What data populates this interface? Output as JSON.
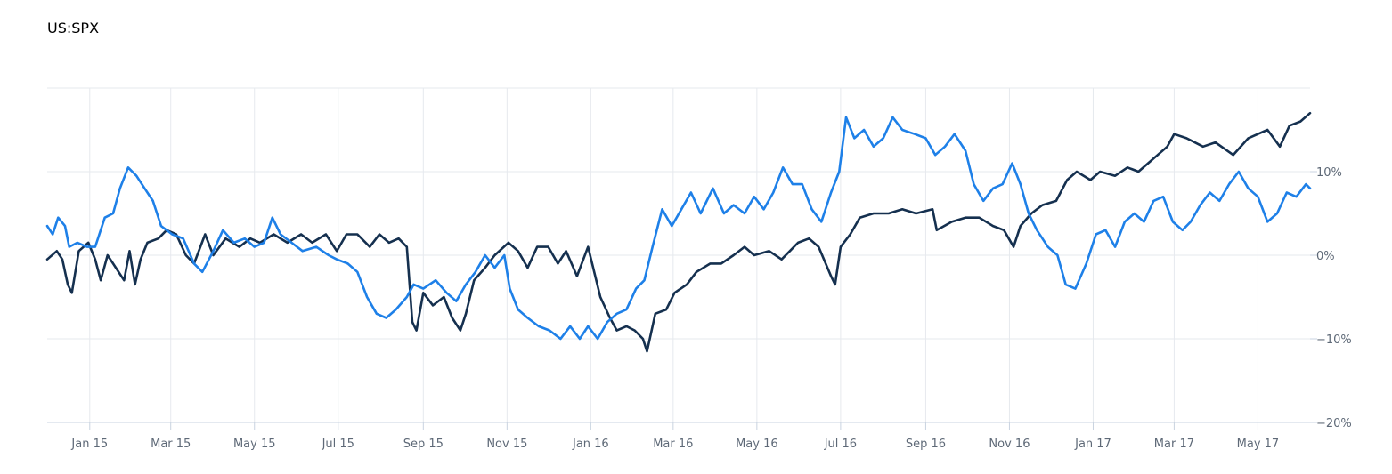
{
  "chart_data": {
    "type": "line",
    "title": "US:SPX",
    "xlabel": "",
    "ylabel": "",
    "x_range": [
      "2014-12-01",
      "2017-06-08"
    ],
    "ylim": [
      -20,
      20
    ],
    "y_ticks": [
      10,
      0,
      -10,
      -20
    ],
    "y_tick_labels": [
      "10%",
      "0%",
      "−10%",
      "−20%"
    ],
    "x_ticks": [
      {
        "date": "2015-01-01",
        "label": "Jan 15"
      },
      {
        "date": "2015-03-01",
        "label": "Mar 15"
      },
      {
        "date": "2015-05-01",
        "label": "May 15"
      },
      {
        "date": "2015-07-01",
        "label": "Jul 15"
      },
      {
        "date": "2015-09-01",
        "label": "Sep 15"
      },
      {
        "date": "2015-11-01",
        "label": "Nov 15"
      },
      {
        "date": "2016-01-01",
        "label": "Jan 16"
      },
      {
        "date": "2016-03-01",
        "label": "Mar 16"
      },
      {
        "date": "2016-05-01",
        "label": "May 16"
      },
      {
        "date": "2016-07-01",
        "label": "Jul 16"
      },
      {
        "date": "2016-09-01",
        "label": "Sep 16"
      },
      {
        "date": "2016-11-01",
        "label": "Nov 16"
      },
      {
        "date": "2017-01-01",
        "label": "Jan 17"
      },
      {
        "date": "2017-03-01",
        "label": "Mar 17"
      },
      {
        "date": "2017-05-01",
        "label": "May 17"
      }
    ],
    "grid": true,
    "y_axis_side": "right",
    "series": [
      {
        "color": "#15304f",
        "points": [
          [
            "2014-12-01",
            -0.5
          ],
          [
            "2014-12-08",
            0.5
          ],
          [
            "2014-12-12",
            -0.5
          ],
          [
            "2014-12-16",
            -3.5
          ],
          [
            "2014-12-19",
            -4.5
          ],
          [
            "2014-12-24",
            0.5
          ],
          [
            "2014-12-31",
            1.5
          ],
          [
            "2015-01-05",
            -0.5
          ],
          [
            "2015-01-09",
            -3
          ],
          [
            "2015-01-14",
            0
          ],
          [
            "2015-01-20",
            -1.5
          ],
          [
            "2015-01-26",
            -3
          ],
          [
            "2015-01-30",
            0.5
          ],
          [
            "2015-02-03",
            -3.5
          ],
          [
            "2015-02-07",
            -0.5
          ],
          [
            "2015-02-12",
            1.5
          ],
          [
            "2015-02-20",
            2
          ],
          [
            "2015-02-26",
            3
          ],
          [
            "2015-03-05",
            2.5
          ],
          [
            "2015-03-12",
            0
          ],
          [
            "2015-03-18",
            -1
          ],
          [
            "2015-03-26",
            2.5
          ],
          [
            "2015-04-01",
            0
          ],
          [
            "2015-04-10",
            2
          ],
          [
            "2015-04-20",
            1
          ],
          [
            "2015-04-28",
            2
          ],
          [
            "2015-05-05",
            1.5
          ],
          [
            "2015-05-15",
            2.5
          ],
          [
            "2015-05-25",
            1.5
          ],
          [
            "2015-06-04",
            2.5
          ],
          [
            "2015-06-12",
            1.5
          ],
          [
            "2015-06-22",
            2.5
          ],
          [
            "2015-06-30",
            0.5
          ],
          [
            "2015-07-07",
            2.5
          ],
          [
            "2015-07-15",
            2.5
          ],
          [
            "2015-07-24",
            1
          ],
          [
            "2015-07-31",
            2.5
          ],
          [
            "2015-08-07",
            1.5
          ],
          [
            "2015-08-14",
            2
          ],
          [
            "2015-08-20",
            1
          ],
          [
            "2015-08-24",
            -8
          ],
          [
            "2015-08-27",
            -9
          ],
          [
            "2015-09-01",
            -4.5
          ],
          [
            "2015-09-08",
            -6
          ],
          [
            "2015-09-16",
            -5
          ],
          [
            "2015-09-22",
            -7.5
          ],
          [
            "2015-09-28",
            -9
          ],
          [
            "2015-10-02",
            -7
          ],
          [
            "2015-10-08",
            -3
          ],
          [
            "2015-10-16",
            -1.5
          ],
          [
            "2015-10-23",
            0
          ],
          [
            "2015-11-02",
            1.5
          ],
          [
            "2015-11-09",
            0.5
          ],
          [
            "2015-11-16",
            -1.5
          ],
          [
            "2015-11-23",
            1
          ],
          [
            "2015-12-01",
            1
          ],
          [
            "2015-12-08",
            -1
          ],
          [
            "2015-12-14",
            0.5
          ],
          [
            "2015-12-22",
            -2.5
          ],
          [
            "2015-12-30",
            1
          ],
          [
            "2016-01-05",
            -3
          ],
          [
            "2016-01-08",
            -5
          ],
          [
            "2016-01-15",
            -7.5
          ],
          [
            "2016-01-20",
            -9
          ],
          [
            "2016-01-27",
            -8.5
          ],
          [
            "2016-02-02",
            -9
          ],
          [
            "2016-02-08",
            -10
          ],
          [
            "2016-02-11",
            -11.5
          ],
          [
            "2016-02-17",
            -7
          ],
          [
            "2016-02-25",
            -6.5
          ],
          [
            "2016-03-02",
            -4.5
          ],
          [
            "2016-03-11",
            -3.5
          ],
          [
            "2016-03-18",
            -2
          ],
          [
            "2016-03-28",
            -1
          ],
          [
            "2016-04-05",
            -1
          ],
          [
            "2016-04-14",
            0
          ],
          [
            "2016-04-22",
            1
          ],
          [
            "2016-04-29",
            0
          ],
          [
            "2016-05-10",
            0.5
          ],
          [
            "2016-05-19",
            -0.5
          ],
          [
            "2016-05-31",
            1.5
          ],
          [
            "2016-06-08",
            2
          ],
          [
            "2016-06-15",
            1
          ],
          [
            "2016-06-24",
            -2.5
          ],
          [
            "2016-06-27",
            -3.5
          ],
          [
            "2016-07-01",
            1
          ],
          [
            "2016-07-08",
            2.5
          ],
          [
            "2016-07-15",
            4.5
          ],
          [
            "2016-07-25",
            5
          ],
          [
            "2016-08-05",
            5
          ],
          [
            "2016-08-15",
            5.5
          ],
          [
            "2016-08-25",
            5
          ],
          [
            "2016-09-06",
            5.5
          ],
          [
            "2016-09-09",
            3
          ],
          [
            "2016-09-20",
            4
          ],
          [
            "2016-09-30",
            4.5
          ],
          [
            "2016-10-10",
            4.5
          ],
          [
            "2016-10-20",
            3.5
          ],
          [
            "2016-10-28",
            3
          ],
          [
            "2016-11-04",
            1
          ],
          [
            "2016-11-09",
            3.5
          ],
          [
            "2016-11-17",
            5
          ],
          [
            "2016-11-25",
            6
          ],
          [
            "2016-12-05",
            6.5
          ],
          [
            "2016-12-13",
            9
          ],
          [
            "2016-12-20",
            10
          ],
          [
            "2016-12-30",
            9
          ],
          [
            "2017-01-06",
            10
          ],
          [
            "2017-01-17",
            9.5
          ],
          [
            "2017-01-26",
            10.5
          ],
          [
            "2017-02-03",
            10
          ],
          [
            "2017-02-10",
            11
          ],
          [
            "2017-02-17",
            12
          ],
          [
            "2017-02-24",
            13
          ],
          [
            "2017-03-01",
            14.5
          ],
          [
            "2017-03-10",
            14
          ],
          [
            "2017-03-22",
            13
          ],
          [
            "2017-03-31",
            13.5
          ],
          [
            "2017-04-13",
            12
          ],
          [
            "2017-04-24",
            14
          ],
          [
            "2017-05-01",
            14.5
          ],
          [
            "2017-05-08",
            15
          ],
          [
            "2017-05-17",
            13
          ],
          [
            "2017-05-24",
            15.5
          ],
          [
            "2017-06-01",
            16
          ],
          [
            "2017-06-08",
            17
          ]
        ]
      },
      {
        "color": "#1e80e8",
        "points": [
          [
            "2014-12-01",
            3.5
          ],
          [
            "2014-12-05",
            2.5
          ],
          [
            "2014-12-09",
            4.5
          ],
          [
            "2014-12-14",
            3.5
          ],
          [
            "2014-12-17",
            1
          ],
          [
            "2014-12-23",
            1.5
          ],
          [
            "2014-12-30",
            1
          ],
          [
            "2015-01-05",
            1
          ],
          [
            "2015-01-12",
            4.5
          ],
          [
            "2015-01-18",
            5
          ],
          [
            "2015-01-23",
            8
          ],
          [
            "2015-01-29",
            10.5
          ],
          [
            "2015-02-04",
            9.5
          ],
          [
            "2015-02-10",
            8
          ],
          [
            "2015-02-16",
            6.5
          ],
          [
            "2015-02-22",
            3.5
          ],
          [
            "2015-03-02",
            2.5
          ],
          [
            "2015-03-10",
            2
          ],
          [
            "2015-03-18",
            -1
          ],
          [
            "2015-03-24",
            -2
          ],
          [
            "2015-04-01",
            0.5
          ],
          [
            "2015-04-08",
            3
          ],
          [
            "2015-04-16",
            1.5
          ],
          [
            "2015-04-24",
            2
          ],
          [
            "2015-05-01",
            1
          ],
          [
            "2015-05-08",
            1.5
          ],
          [
            "2015-05-14",
            4.5
          ],
          [
            "2015-05-20",
            2.5
          ],
          [
            "2015-05-28",
            1.5
          ],
          [
            "2015-06-05",
            0.5
          ],
          [
            "2015-06-15",
            1
          ],
          [
            "2015-06-24",
            0
          ],
          [
            "2015-06-30",
            -0.5
          ],
          [
            "2015-07-08",
            -1
          ],
          [
            "2015-07-15",
            -2
          ],
          [
            "2015-07-22",
            -5
          ],
          [
            "2015-07-29",
            -7
          ],
          [
            "2015-08-05",
            -7.5
          ],
          [
            "2015-08-12",
            -6.5
          ],
          [
            "2015-08-20",
            -5
          ],
          [
            "2015-08-25",
            -3.5
          ],
          [
            "2015-09-01",
            -4
          ],
          [
            "2015-09-10",
            -3
          ],
          [
            "2015-09-18",
            -4.5
          ],
          [
            "2015-09-25",
            -5.5
          ],
          [
            "2015-10-02",
            -3.5
          ],
          [
            "2015-10-09",
            -2
          ],
          [
            "2015-10-16",
            0
          ],
          [
            "2015-10-23",
            -1.5
          ],
          [
            "2015-10-30",
            0
          ],
          [
            "2015-11-03",
            -4
          ],
          [
            "2015-11-09",
            -6.5
          ],
          [
            "2015-11-16",
            -7.5
          ],
          [
            "2015-11-24",
            -8.5
          ],
          [
            "2015-12-02",
            -9
          ],
          [
            "2015-12-10",
            -10
          ],
          [
            "2015-12-17",
            -8.5
          ],
          [
            "2015-12-24",
            -10
          ],
          [
            "2015-12-30",
            -8.5
          ],
          [
            "2016-01-06",
            -10
          ],
          [
            "2016-01-13",
            -8
          ],
          [
            "2016-01-20",
            -7
          ],
          [
            "2016-01-27",
            -6.5
          ],
          [
            "2016-02-03",
            -4
          ],
          [
            "2016-02-09",
            -3
          ],
          [
            "2016-02-15",
            1
          ],
          [
            "2016-02-22",
            5.5
          ],
          [
            "2016-02-29",
            3.5
          ],
          [
            "2016-03-07",
            5.5
          ],
          [
            "2016-03-14",
            7.5
          ],
          [
            "2016-03-21",
            5
          ],
          [
            "2016-03-30",
            8
          ],
          [
            "2016-04-07",
            5
          ],
          [
            "2016-04-14",
            6
          ],
          [
            "2016-04-22",
            5
          ],
          [
            "2016-04-29",
            7
          ],
          [
            "2016-05-06",
            5.5
          ],
          [
            "2016-05-13",
            7.5
          ],
          [
            "2016-05-20",
            10.5
          ],
          [
            "2016-05-27",
            8.5
          ],
          [
            "2016-06-03",
            8.5
          ],
          [
            "2016-06-10",
            5.5
          ],
          [
            "2016-06-17",
            4
          ],
          [
            "2016-06-24",
            7.5
          ],
          [
            "2016-06-30",
            10
          ],
          [
            "2016-07-05",
            16.5
          ],
          [
            "2016-07-11",
            14
          ],
          [
            "2016-07-18",
            15
          ],
          [
            "2016-07-25",
            13
          ],
          [
            "2016-08-01",
            14
          ],
          [
            "2016-08-08",
            16.5
          ],
          [
            "2016-08-15",
            15
          ],
          [
            "2016-08-24",
            14.5
          ],
          [
            "2016-09-01",
            14
          ],
          [
            "2016-09-08",
            12
          ],
          [
            "2016-09-15",
            13
          ],
          [
            "2016-09-22",
            14.5
          ],
          [
            "2016-09-30",
            12.5
          ],
          [
            "2016-10-06",
            8.5
          ],
          [
            "2016-10-13",
            6.5
          ],
          [
            "2016-10-20",
            8
          ],
          [
            "2016-10-27",
            8.5
          ],
          [
            "2016-11-03",
            11
          ],
          [
            "2016-11-09",
            8.5
          ],
          [
            "2016-11-15",
            5
          ],
          [
            "2016-11-21",
            3
          ],
          [
            "2016-11-29",
            1
          ],
          [
            "2016-12-06",
            0
          ],
          [
            "2016-12-12",
            -3.5
          ],
          [
            "2016-12-19",
            -4
          ],
          [
            "2016-12-27",
            -1
          ],
          [
            "2017-01-03",
            2.5
          ],
          [
            "2017-01-10",
            3
          ],
          [
            "2017-01-17",
            1
          ],
          [
            "2017-01-24",
            4
          ],
          [
            "2017-01-31",
            5
          ],
          [
            "2017-02-07",
            4
          ],
          [
            "2017-02-14",
            6.5
          ],
          [
            "2017-02-21",
            7
          ],
          [
            "2017-02-28",
            4
          ],
          [
            "2017-03-07",
            3
          ],
          [
            "2017-03-13",
            4
          ],
          [
            "2017-03-20",
            6
          ],
          [
            "2017-03-27",
            7.5
          ],
          [
            "2017-04-03",
            6.5
          ],
          [
            "2017-04-10",
            8.5
          ],
          [
            "2017-04-17",
            10
          ],
          [
            "2017-04-24",
            8
          ],
          [
            "2017-05-01",
            7
          ],
          [
            "2017-05-08",
            4
          ],
          [
            "2017-05-15",
            5
          ],
          [
            "2017-05-22",
            7.5
          ],
          [
            "2017-05-29",
            7
          ],
          [
            "2017-06-05",
            8.5
          ],
          [
            "2017-06-08",
            8
          ]
        ]
      }
    ]
  }
}
